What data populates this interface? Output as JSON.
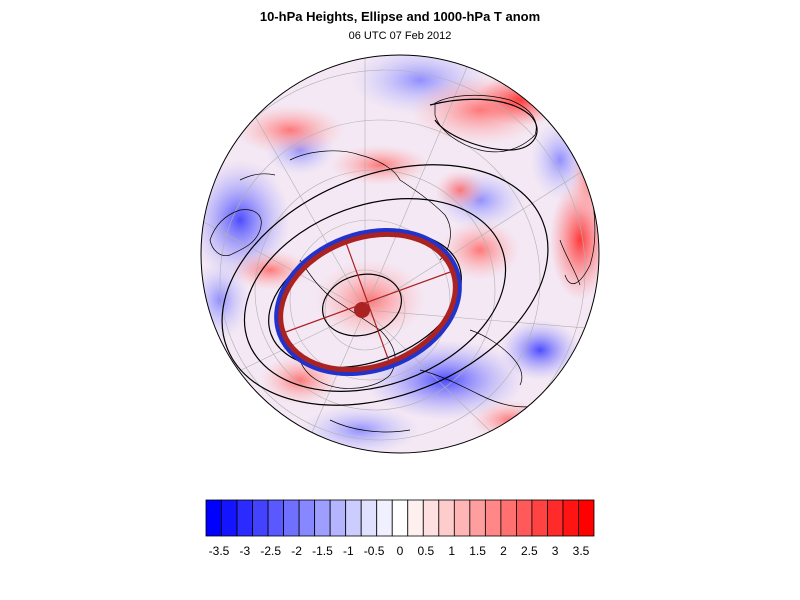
{
  "title": "10-hPa Heights, Ellipse and 1000-hPa T anom",
  "subtitle": "06 UTC 07 Feb 2012",
  "map": {
    "projection": "orthographic-north-polar",
    "fill_field": "1000-hPa temperature anomaly",
    "contour_field": "10-hPa geopotential height",
    "overlay": "vortex ellipse",
    "ellipse_outer_color": "#2233cc",
    "ellipse_inner_color": "#aa2222",
    "centroid_color": "#aa2222",
    "contour_color": "#000000",
    "coastline_color": "#000000"
  },
  "colorbar": {
    "labels": [
      "-3.5",
      "-3",
      "-2.5",
      "-2",
      "-1.5",
      "-1",
      "-0.5",
      "0",
      "0.5",
      "1",
      "1.5",
      "2",
      "2.5",
      "3",
      "3.5"
    ],
    "colors": [
      "#0000ff",
      "#1414ff",
      "#2b2bff",
      "#4242ff",
      "#5959ff",
      "#7070ff",
      "#8787ff",
      "#9e9eff",
      "#b5b5ff",
      "#ccccff",
      "#e0e0ff",
      "#f0f0ff",
      "#ffffff",
      "#fff0f0",
      "#ffe0e0",
      "#ffcccc",
      "#ffb5b5",
      "#ff9e9e",
      "#ff8787",
      "#ff7070",
      "#ff5959",
      "#ff4242",
      "#ff2b2b",
      "#ff1414",
      "#ff0000"
    ]
  }
}
